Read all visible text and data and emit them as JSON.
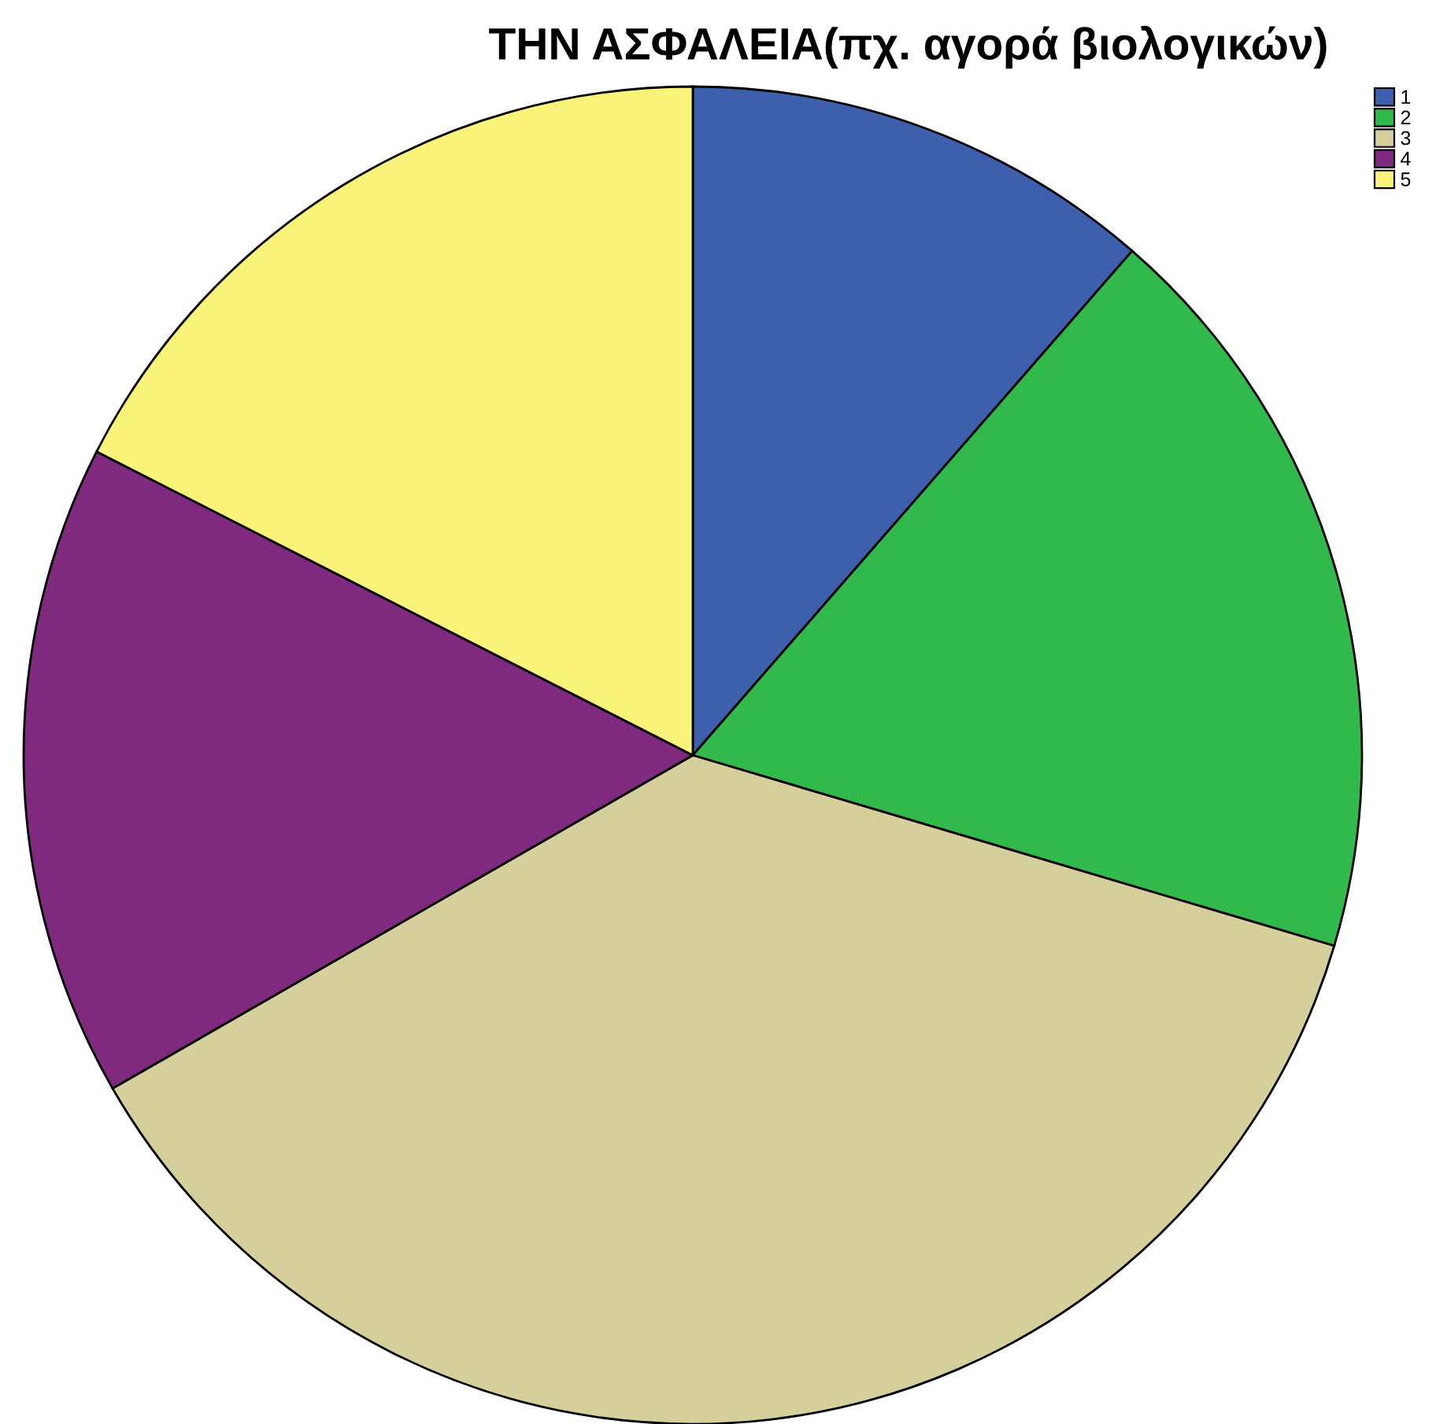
{
  "chart_data": {
    "type": "pie",
    "title": "ΤΗΝ ΑΣΦΑΛΕΙΑ(πχ. αγορά βιολογικών)",
    "categories": [
      "1",
      "2",
      "3",
      "4",
      "5"
    ],
    "values": [
      11.4,
      18.2,
      37.1,
      15.8,
      17.5
    ],
    "colors": [
      "#3e5fac",
      "#31b94c",
      "#d5cf9c",
      "#7f2a7f",
      "#f9f37a"
    ],
    "legend": "top right"
  }
}
